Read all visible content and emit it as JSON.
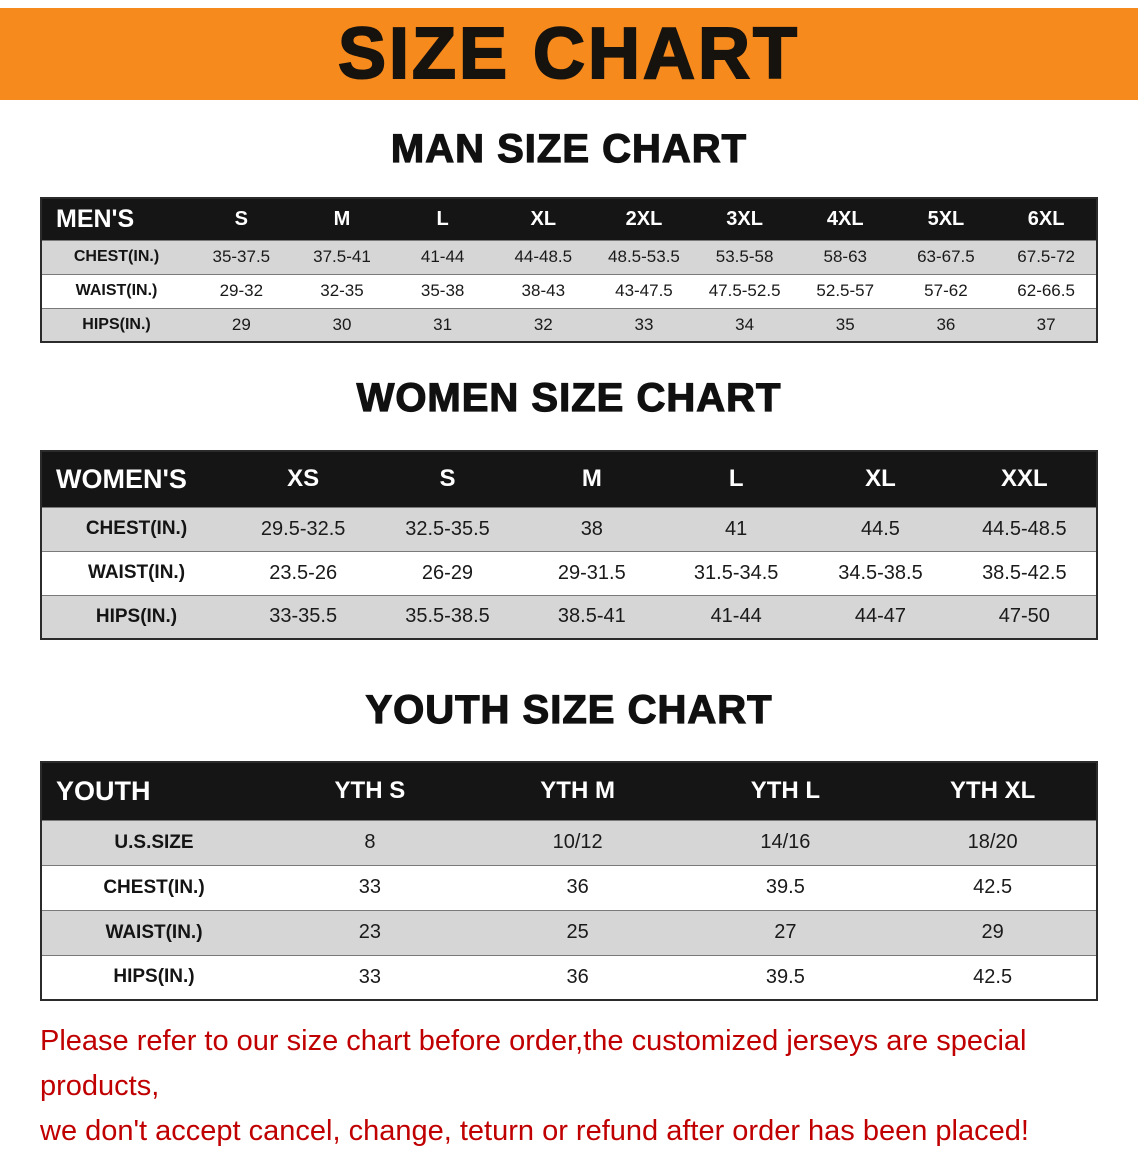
{
  "banner": {
    "title": "SIZE CHART"
  },
  "sections": [
    {
      "heading": "MAN SIZE CHART",
      "table": {
        "header": [
          "MEN'S",
          "S",
          "M",
          "L",
          "XL",
          "2XL",
          "3XL",
          "4XL",
          "5XL",
          "6XL"
        ],
        "rows": [
          [
            "CHEST(IN.)",
            "35-37.5",
            "37.5-41",
            "41-44",
            "44-48.5",
            "48.5-53.5",
            "53.5-58",
            "58-63",
            "63-67.5",
            "67.5-72"
          ],
          [
            "WAIST(IN.)",
            "29-32",
            "32-35",
            "35-38",
            "38-43",
            "43-47.5",
            "47.5-52.5",
            "52.5-57",
            "57-62",
            "62-66.5"
          ],
          [
            "HIPS(IN.)",
            "29",
            "30",
            "31",
            "32",
            "33",
            "34",
            "35",
            "36",
            "37"
          ]
        ]
      }
    },
    {
      "heading": "WOMEN SIZE CHART",
      "table": {
        "header": [
          "WOMEN'S",
          "XS",
          "S",
          "M",
          "L",
          "XL",
          "XXL"
        ],
        "rows": [
          [
            "CHEST(IN.)",
            "29.5-32.5",
            "32.5-35.5",
            "38",
            "41",
            "44.5",
            "44.5-48.5"
          ],
          [
            "WAIST(IN.)",
            "23.5-26",
            "26-29",
            "29-31.5",
            "31.5-34.5",
            "34.5-38.5",
            "38.5-42.5"
          ],
          [
            "HIPS(IN.)",
            "33-35.5",
            "35.5-38.5",
            "38.5-41",
            "41-44",
            "44-47",
            "47-50"
          ]
        ]
      }
    },
    {
      "heading": "YOUTH SIZE CHART",
      "table": {
        "header": [
          "YOUTH",
          "YTH S",
          "YTH M",
          "YTH L",
          "YTH XL"
        ],
        "rows": [
          [
            "U.S.SIZE",
            "8",
            "10/12",
            "14/16",
            "18/20"
          ],
          [
            "CHEST(IN.)",
            "33",
            "36",
            "39.5",
            "42.5"
          ],
          [
            "WAIST(IN.)",
            "23",
            "25",
            "27",
            "29"
          ],
          [
            "HIPS(IN.)",
            "33",
            "36",
            "39.5",
            "42.5"
          ]
        ]
      }
    }
  ],
  "disclaimer": {
    "line1": "Please refer to our size chart before order,the customized jerseys are special products,",
    "line2": "we don't accept cancel, change, teturn or refund after order has been placed!"
  },
  "colors": {
    "banner_bg": "#f68a1d",
    "table_header_bg": "#151515",
    "row_stripe": "#d6d6d6",
    "disclaimer_red": "#c00000"
  }
}
